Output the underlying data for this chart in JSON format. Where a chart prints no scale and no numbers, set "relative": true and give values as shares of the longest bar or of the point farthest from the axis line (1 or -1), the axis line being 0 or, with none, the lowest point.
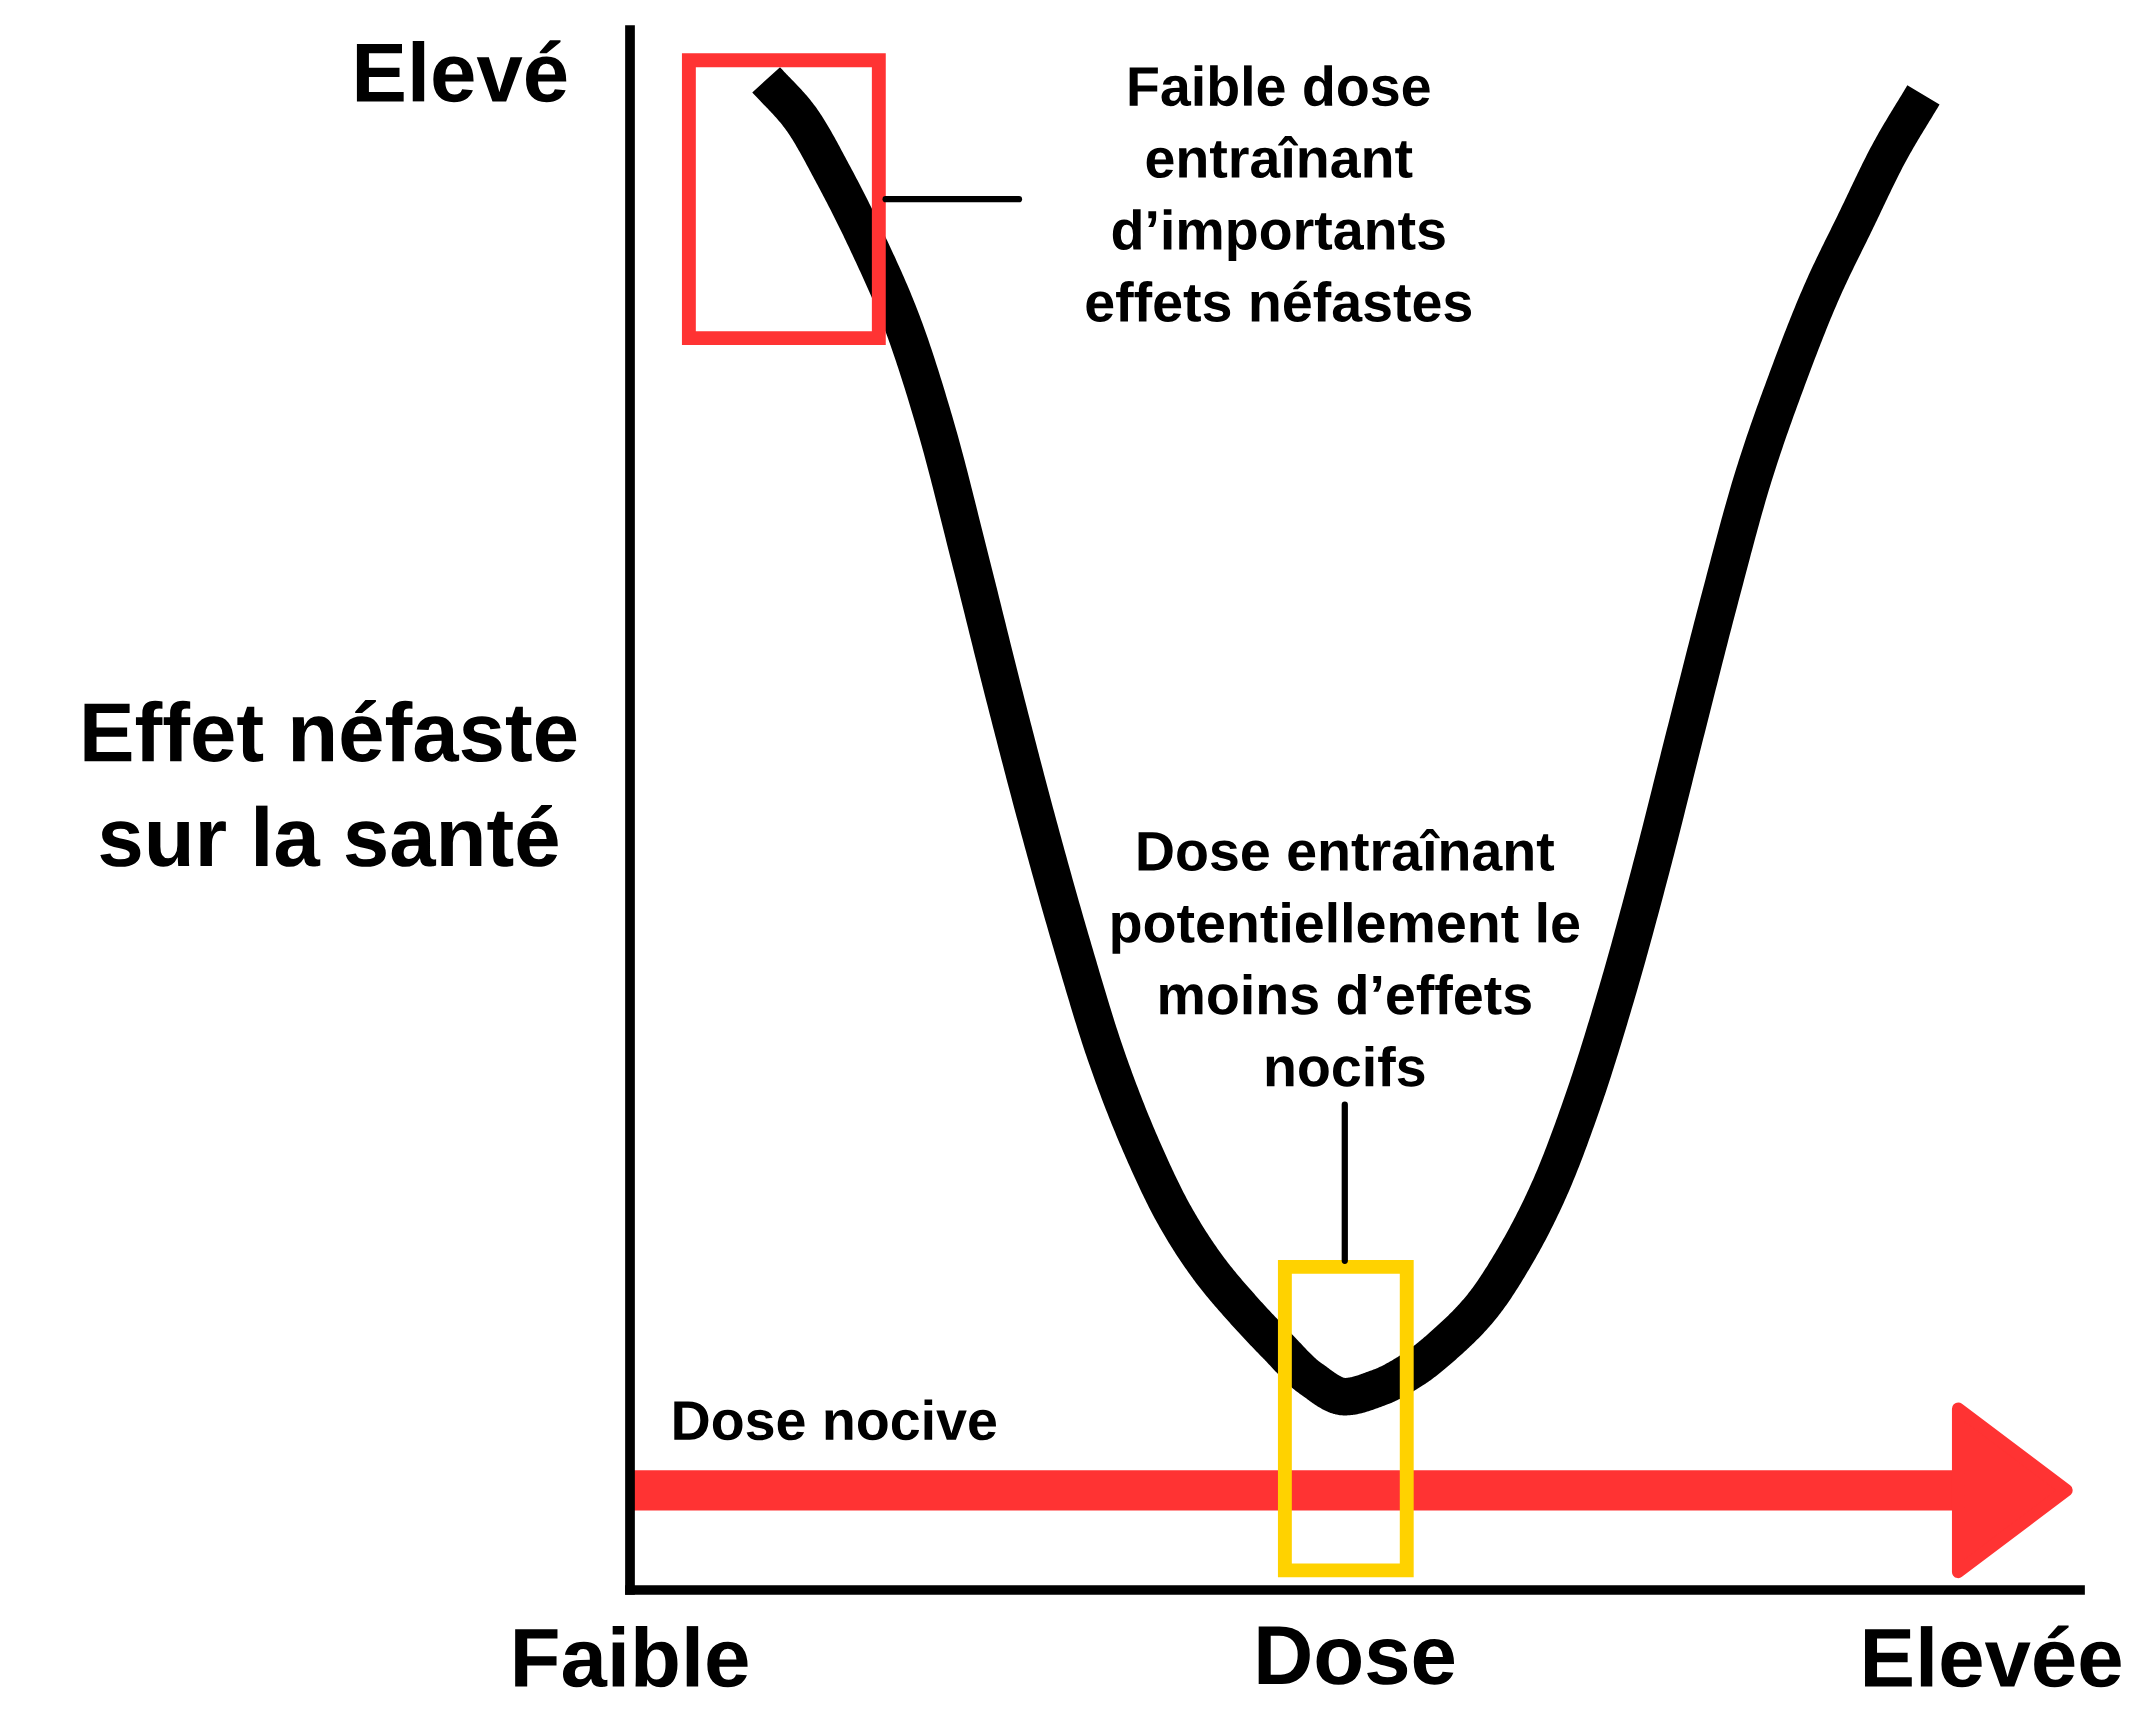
{
  "chart_data": {
    "type": "line",
    "relative": true,
    "xlabel": "Dose",
    "ylabel": "Effet néfaste\nsur la santé",
    "categories": [
      "Faible",
      null,
      null,
      null,
      null,
      null,
      null,
      null,
      null,
      null,
      null,
      null,
      null,
      null,
      null,
      null,
      null,
      null,
      null,
      null,
      null,
      null,
      null,
      null,
      null,
      null,
      null,
      null,
      null,
      null,
      null,
      null,
      null,
      null,
      null,
      null,
      null,
      null,
      null,
      null,
      "Elevée"
    ],
    "series": [
      {
        "color": "#000000",
        "values": [
          null,
          null,
          null,
          null,
          1.0,
          0.975,
          0.936,
          0.891,
          0.839,
          0.769,
          0.682,
          0.592,
          0.506,
          0.426,
          0.353,
          0.295,
          0.248,
          0.213,
          0.186,
          0.162,
          0.14,
          0.128,
          0.134,
          0.146,
          0.164,
          0.187,
          0.221,
          0.265,
          0.324,
          0.396,
          0.478,
          0.567,
          0.655,
          0.737,
          0.802,
          0.859,
          0.906,
          0.952,
          0.99,
          null,
          null
        ]
      }
    ],
    "ref_lines": [
      {
        "axis": "y",
        "value": 0.066,
        "label": "Dose nocive",
        "color": "#ff3333"
      }
    ],
    "annotations": [
      "Elevé",
      "Faible dose\nentraînant\nd’importants\neffets néfastes",
      "Dose entraînant\npotentiellement le\nmoins d’effets\nnocifs"
    ]
  }
}
